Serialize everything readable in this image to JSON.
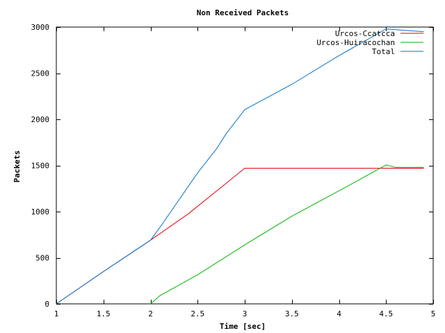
{
  "chart_data": {
    "type": "line",
    "title": "Non Received Packets",
    "xlabel": "Time [sec]",
    "ylabel": "Packets",
    "xlim": [
      1,
      5
    ],
    "ylim": [
      0,
      3000
    ],
    "xticks": [
      1,
      1.5,
      2,
      2.5,
      3,
      3.5,
      4,
      4.5,
      5
    ],
    "xtick_labels": [
      "1",
      "1.5",
      "2",
      "2.5",
      "3",
      "3.5",
      "4",
      "4.5",
      "5"
    ],
    "yticks": [
      0,
      500,
      1000,
      1500,
      2000,
      2500,
      3000
    ],
    "ytick_labels": [
      "0",
      "500",
      "1000",
      "1500",
      "2000",
      "2500",
      "3000"
    ],
    "grid": false,
    "legend_position": "top-right",
    "series": [
      {
        "name": "Urcos-Ccatcca",
        "color": "#e8000b",
        "points": [
          [
            1,
            0
          ],
          [
            1.5,
            350
          ],
          [
            2,
            690
          ],
          [
            2.4,
            975
          ],
          [
            3,
            1470
          ],
          [
            4.9,
            1470
          ]
        ]
      },
      {
        "name": "Urcos-Huiracochan",
        "color": "#00b300",
        "points": [
          [
            2,
            0
          ],
          [
            2.1,
            90
          ],
          [
            2.5,
            315
          ],
          [
            3,
            640
          ],
          [
            3.5,
            950
          ],
          [
            4,
            1225
          ],
          [
            4.5,
            1505
          ],
          [
            4.6,
            1480
          ],
          [
            4.9,
            1480
          ]
        ]
      },
      {
        "name": "Total",
        "color": "#0073c6",
        "points": [
          [
            1,
            0
          ],
          [
            1.5,
            350
          ],
          [
            2,
            690
          ],
          [
            2.1,
            830
          ],
          [
            2.5,
            1420
          ],
          [
            2.7,
            1680
          ],
          [
            2.8,
            1840
          ],
          [
            3,
            2105
          ],
          [
            3.5,
            2380
          ],
          [
            4,
            2690
          ],
          [
            4.5,
            2980
          ],
          [
            4.9,
            2950
          ]
        ]
      }
    ]
  }
}
